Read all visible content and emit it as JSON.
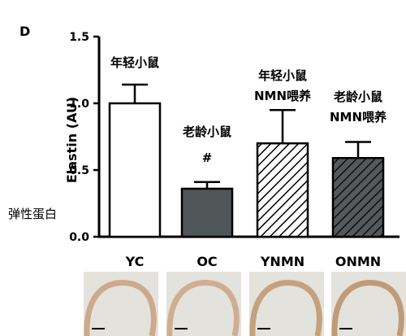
{
  "panel_label": "D",
  "side_note": "弹性蛋白",
  "chart_data": {
    "type": "bar",
    "ylabel": "Elastin (AU)",
    "ylim": [
      0.0,
      1.5
    ],
    "yticks": [
      "0.0",
      "0.5",
      "1.0",
      "1.5"
    ],
    "yticks_values": [
      0.0,
      0.5,
      1.0,
      1.5
    ],
    "categories": [
      "YC",
      "OC",
      "YNMN",
      "ONMN"
    ],
    "values": [
      1.0,
      0.36,
      0.7,
      0.59
    ],
    "error_upper": [
      0.14,
      0.05,
      0.25,
      0.12
    ],
    "annotations": [
      [
        "年轻小鼠"
      ],
      [
        "老龄小鼠",
        "#"
      ],
      [
        "年轻小鼠",
        "NMN喂养"
      ],
      [
        "老龄小鼠",
        "NMN喂养"
      ]
    ],
    "bar_styles": [
      "white",
      "dark-gray",
      "hatch-light",
      "hatch-dark"
    ],
    "colors": {
      "dark_gray": "#505557",
      "hatch_dark_bg": "#55595b",
      "axis": "#000000"
    }
  },
  "images": [
    {
      "name": "histology-yc",
      "color": "#c9a07e"
    },
    {
      "name": "histology-oc",
      "color": "#caa585"
    },
    {
      "name": "histology-ynmn",
      "color": "#bf9570"
    },
    {
      "name": "histology-onmn",
      "color": "#ba8e66"
    }
  ]
}
